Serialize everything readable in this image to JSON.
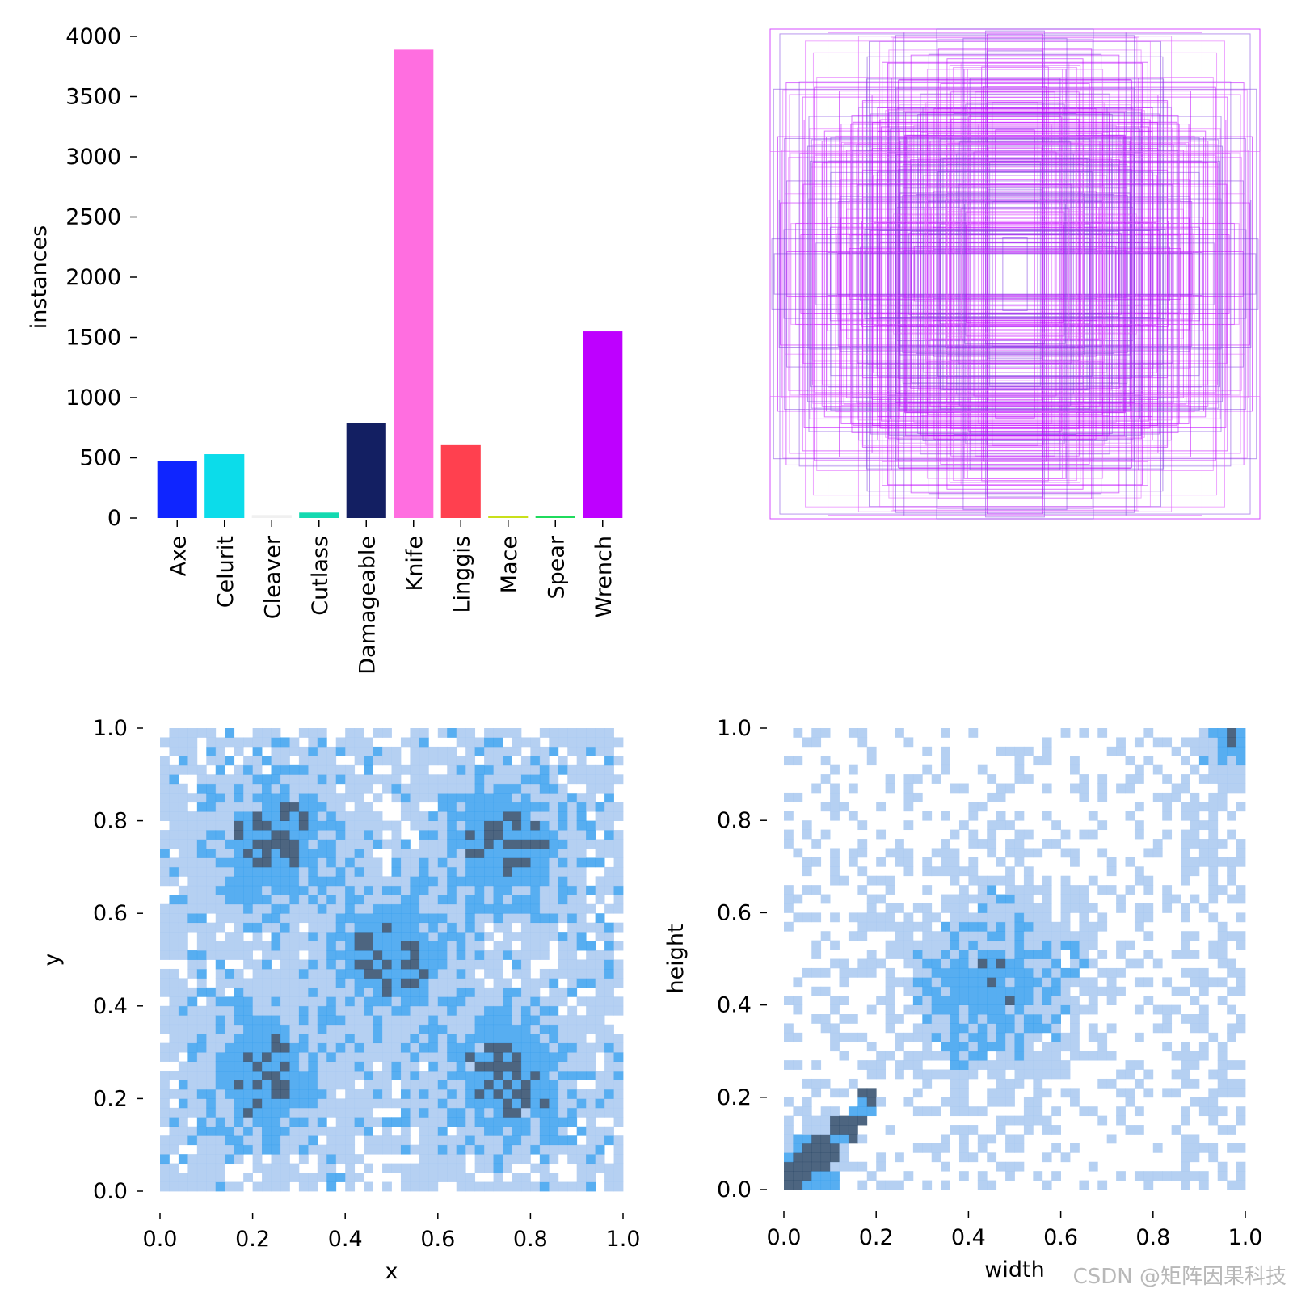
{
  "chart_data": [
    {
      "type": "bar",
      "categories": [
        "Axe",
        "Celurit",
        "Cleaver",
        "Cutlass",
        "Damageable",
        "Knife",
        "Linggis",
        "Mace",
        "Spear",
        "Wrench"
      ],
      "values": [
        470,
        530,
        25,
        45,
        790,
        3890,
        605,
        20,
        15,
        1550
      ],
      "colors": [
        "#0f25ff",
        "#0cdcea",
        "#f0f0f0",
        "#13d9b0",
        "#131f62",
        "#ff6ee0",
        "#ff404f",
        "#c9e01a",
        "#1fdb5c",
        "#be00ff"
      ],
      "ylabel": "instances",
      "ylim": [
        0,
        4000
      ],
      "yticks": [
        0,
        500,
        1000,
        1500,
        2000,
        2500,
        3000,
        3500,
        4000
      ],
      "grid": false
    },
    {
      "type": "box_overlay",
      "description_colors": [
        "#c000ff",
        "#8040e0",
        "#e060ff"
      ],
      "note": "Overlay of normalized box outlines centered in unit square"
    },
    {
      "type": "heatmap",
      "xlabel": "x",
      "ylabel": "y",
      "xlim": [
        0,
        1
      ],
      "ylim": [
        0,
        1
      ],
      "xticks": [
        "0.0",
        "0.2",
        "0.4",
        "0.6",
        "0.8",
        "1.0"
      ],
      "yticks": [
        "0.0",
        "0.2",
        "0.4",
        "0.6",
        "0.8",
        "1.0"
      ],
      "clusters": [
        [
          0.25,
          0.75
        ],
        [
          0.75,
          0.75
        ],
        [
          0.5,
          0.5
        ],
        [
          0.22,
          0.25
        ],
        [
          0.75,
          0.25
        ]
      ]
    },
    {
      "type": "heatmap",
      "xlabel": "width",
      "ylabel": "height",
      "xlim": [
        0,
        1
      ],
      "ylim": [
        0,
        1
      ],
      "xticks": [
        "0.0",
        "0.2",
        "0.4",
        "0.6",
        "0.8",
        "1.0"
      ],
      "yticks": [
        "0.0",
        "0.2",
        "0.4",
        "0.6",
        "0.8",
        "1.0"
      ],
      "clusters": [
        [
          0.45,
          0.45
        ],
        [
          0.05,
          0.05
        ],
        [
          0.98,
          0.98
        ]
      ]
    }
  ],
  "colors": {
    "heat_low": "#a8c8f0",
    "heat_mid": "#3aa0ef",
    "heat_high": "#2e4a6a"
  },
  "watermark": "CSDN @矩阵因果科技"
}
